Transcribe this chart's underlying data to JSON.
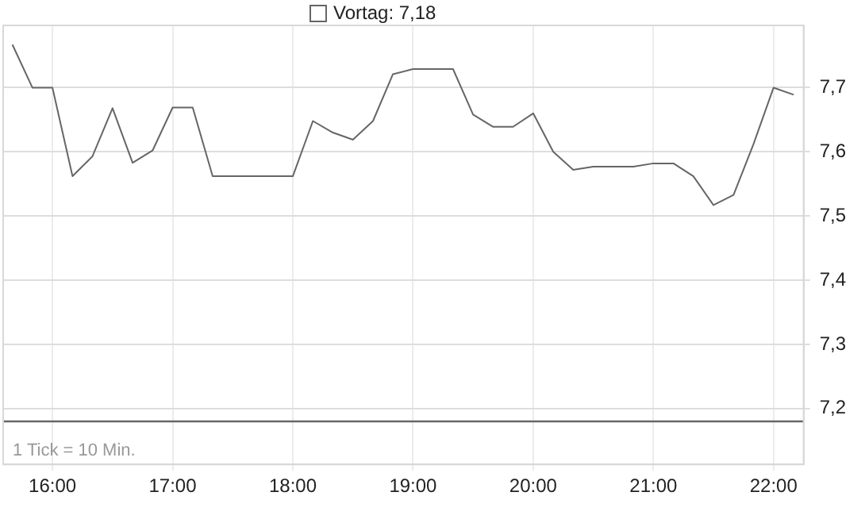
{
  "chart_data": {
    "type": "line",
    "x": [
      15.667,
      15.833,
      16,
      16.167,
      16.333,
      16.5,
      16.667,
      16.833,
      17,
      17.167,
      17.333,
      17.5,
      17.667,
      17.833,
      18,
      18.167,
      18.333,
      18.5,
      18.667,
      18.833,
      19,
      19.167,
      19.333,
      19.5,
      19.667,
      19.833,
      20,
      20.167,
      20.333,
      20.5,
      20.667,
      20.833,
      21,
      21.167,
      21.333,
      21.5,
      21.667,
      21.833,
      22,
      22.167
    ],
    "series": [
      {
        "color": "#666666",
        "values": [
          7.767,
          7.7,
          7.7,
          7.562,
          7.593,
          7.668,
          7.583,
          7.602,
          7.669,
          7.669,
          7.562,
          7.562,
          7.562,
          7.562,
          7.562,
          7.648,
          7.63,
          7.619,
          7.648,
          7.721,
          7.729,
          7.729,
          7.729,
          7.658,
          7.639,
          7.639,
          7.66,
          7.6,
          7.572,
          7.577,
          7.577,
          7.577,
          7.582,
          7.582,
          7.562,
          7.517,
          7.533,
          7.612,
          7.7,
          7.689
        ]
      }
    ],
    "xlim": [
      15.59,
      22.25
    ],
    "xticks": [
      {
        "value": 16,
        "label": "16:00"
      },
      {
        "value": 17,
        "label": "17:00"
      },
      {
        "value": 18,
        "label": "18:00"
      },
      {
        "value": 19,
        "label": "19:00"
      },
      {
        "value": 20,
        "label": "20:00"
      },
      {
        "value": 21,
        "label": "21:00"
      },
      {
        "value": 22,
        "label": "22:00"
      }
    ],
    "ylim": [
      7.113,
      7.797
    ],
    "yticks": [
      {
        "value": 7.2,
        "label": "7,2"
      },
      {
        "value": 7.3,
        "label": "7,3"
      },
      {
        "value": 7.4,
        "label": "7,4"
      },
      {
        "value": 7.5,
        "label": "7,5"
      },
      {
        "value": 7.6,
        "label": "7,6"
      },
      {
        "value": 7.7,
        "label": "7,7"
      }
    ],
    "ref_lines": [
      {
        "axis": "y",
        "value": 7.18,
        "label": "Vortag: 7,18",
        "color": "#666666",
        "line_style": "solid"
      }
    ],
    "annotations": [
      "1 Tick = 10 Min."
    ],
    "grid": true,
    "marker": "none",
    "line_style": "solid"
  }
}
